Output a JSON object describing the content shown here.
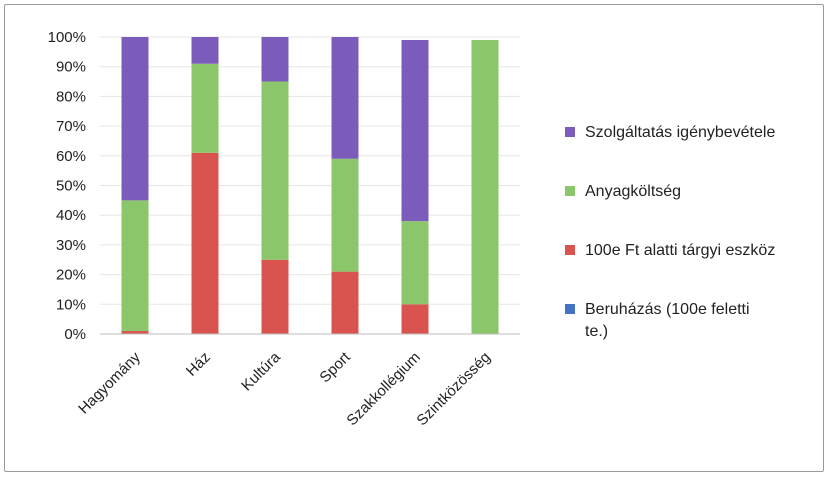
{
  "chart_data": {
    "type": "bar",
    "stacked": true,
    "percent": true,
    "categories": [
      "Hagyomány",
      "Ház",
      "Kultúra",
      "Sport",
      "Szakkollégium",
      "Szintközösség"
    ],
    "series": [
      {
        "name": "Beruházás (100e feletti te.)",
        "color": "#4472c4",
        "values": [
          0,
          0,
          0,
          0,
          0,
          0
        ]
      },
      {
        "name": "100e Ft alatti tárgyi eszköz",
        "color": "#d9534f",
        "values": [
          1,
          61,
          25,
          21,
          10,
          0
        ]
      },
      {
        "name": "Anyagköltség",
        "color": "#8cc66a",
        "values": [
          44,
          30,
          60,
          38,
          28,
          99
        ]
      },
      {
        "name": "Szolgáltatás igénybevétele",
        "color": "#7b5cbb",
        "values": [
          55,
          9,
          15,
          41,
          61,
          0
        ]
      }
    ],
    "ylim": [
      0,
      100
    ],
    "yticks": [
      "0%",
      "10%",
      "20%",
      "30%",
      "40%",
      "50%",
      "60%",
      "70%",
      "80%",
      "90%",
      "100%"
    ],
    "legend": {
      "position": "right",
      "order": [
        "Szolgáltatás igénybevétele",
        "Anyagköltség",
        "100e Ft alatti tárgyi eszköz",
        "Beruházás (100e feletti te.)"
      ],
      "lines": [
        [
          "Szolgáltatás igénybevétele"
        ],
        [
          "Anyagköltség"
        ],
        [
          "100e Ft alatti tárgyi eszköz"
        ],
        [
          "Beruházás (100e feletti",
          "te.)"
        ]
      ]
    },
    "grid": true
  }
}
